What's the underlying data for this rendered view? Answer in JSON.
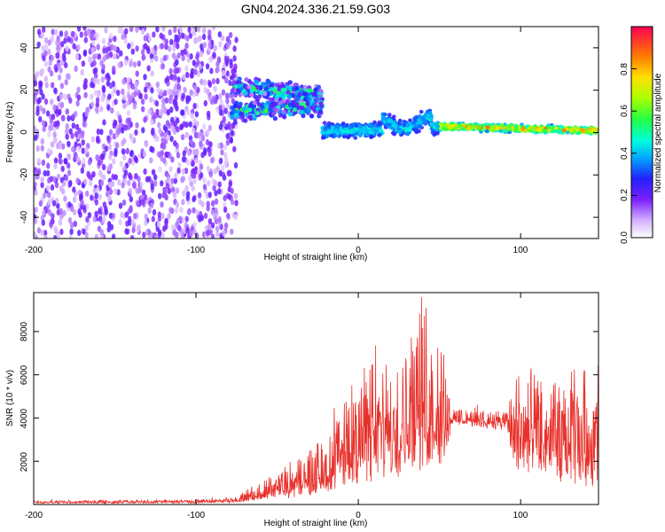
{
  "figure": {
    "title": "GN04.2024.336.21.59.G03"
  },
  "chart_data": [
    {
      "type": "heatmap",
      "xlabel": "Height of straight line (km)",
      "ylabel": "Frequency (Hz)",
      "xlim": [
        -200,
        148
      ],
      "ylim": [
        -50,
        50
      ],
      "xticks": [
        "-200",
        "-100",
        "0",
        "100"
      ],
      "yticks": [
        "-40",
        "-20",
        "0",
        "20",
        "40"
      ],
      "colorbar": {
        "label": "Normalized spectral amplitude",
        "range": [
          0.0,
          1.0
        ],
        "ticks": [
          "0.0",
          "0.2",
          "0.4",
          "0.6",
          "0.8"
        ]
      },
      "regions": [
        {
          "x_range": [
            -200,
            -75
          ],
          "frequency_range": [
            -50,
            50
          ],
          "description_level": 0.15
        },
        {
          "x_range": [
            -78,
            -22
          ],
          "frequency_center": [
            22,
            10
          ],
          "level_max": 0.55
        },
        {
          "x_range": [
            -22,
            148
          ],
          "frequency_center": 1,
          "level_max": 0.95
        }
      ]
    },
    {
      "type": "line",
      "xlabel": "Height of straight line (km)",
      "ylabel": "SNR (10 * v/v)",
      "xlim": [
        -200,
        148
      ],
      "ylim": [
        0,
        9800
      ],
      "xticks": [
        "-200",
        "-100",
        "0",
        "100"
      ],
      "yticks": [
        "2000",
        "4000",
        "6000",
        "8000"
      ],
      "color": "#e8302a",
      "envelope": [
        {
          "x": -200,
          "low": 50,
          "high": 200
        },
        {
          "x": -100,
          "low": 60,
          "high": 250
        },
        {
          "x": -75,
          "low": 80,
          "high": 400
        },
        {
          "x": -60,
          "low": 200,
          "high": 1200
        },
        {
          "x": -40,
          "low": 300,
          "high": 2200
        },
        {
          "x": -20,
          "low": 500,
          "high": 3500
        },
        {
          "x": 0,
          "low": 800,
          "high": 6500
        },
        {
          "x": 20,
          "low": 1000,
          "high": 7500
        },
        {
          "x": 30,
          "low": 1500,
          "high": 8500
        },
        {
          "x": 40,
          "low": 1500,
          "high": 9800
        },
        {
          "x": 55,
          "low": 2000,
          "high": 8000
        },
        {
          "x": 57,
          "low": 3700,
          "high": 4500
        },
        {
          "x": 92,
          "low": 3400,
          "high": 4500
        },
        {
          "x": 95,
          "low": 1500,
          "high": 6500
        },
        {
          "x": 110,
          "low": 1200,
          "high": 6500
        },
        {
          "x": 130,
          "low": 800,
          "high": 6500
        },
        {
          "x": 148,
          "low": 500,
          "high": 7200
        }
      ]
    }
  ]
}
